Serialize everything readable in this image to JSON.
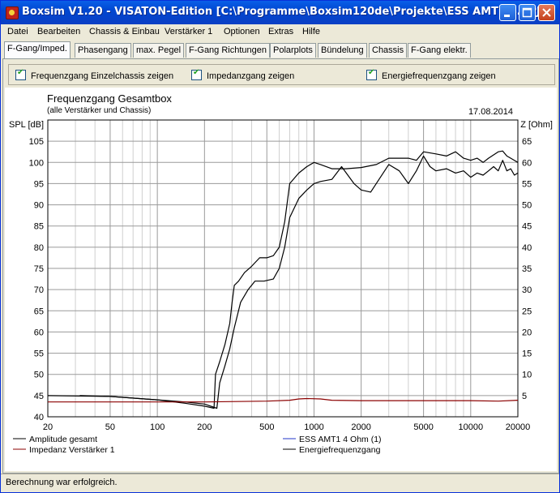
{
  "window": {
    "title": "Boxsim V1.20 - VISATON-Edition [C:\\Programme\\Boxsim120de\\Projekte\\ESS AMT1 4.BPJ]"
  },
  "menu": [
    "Datei",
    "Bearbeiten",
    "Chassis & Einbau",
    "Verstärker 1",
    "Optionen",
    "Extras",
    "Hilfe"
  ],
  "tabs": [
    "F-Gang/Imped.",
    "Phasengang",
    "max. Pegel",
    "F-Gang Richtungen",
    "Polarplots",
    "Bündelung",
    "Chassis",
    "F-Gang elektr."
  ],
  "active_tab": "F-Gang/Imped.",
  "checkboxes": [
    {
      "label": "Frequenzgang Einzelchassis zeigen",
      "checked": true
    },
    {
      "label": "Impedanzgang zeigen",
      "checked": true
    },
    {
      "label": "Energiefrequenzgang zeigen",
      "checked": true
    }
  ],
  "status": "Berechnung war erfolgreich.",
  "chart_data": {
    "type": "line",
    "title": "Frequenzgang Gesamtbox",
    "subtitle": "(alle Verstärker und Chassis)",
    "date": "17.08.2014",
    "ylabel": "SPL [dB]",
    "y2label": "Z [Ohm]",
    "xscale": "log",
    "xlim": [
      20,
      20000
    ],
    "ylim": [
      40,
      110
    ],
    "y2lim": [
      0,
      70
    ],
    "xticks": [
      "20",
      "50",
      "100",
      "200",
      "500",
      "1000",
      "2000",
      "5000",
      "10000",
      "20000"
    ],
    "yticks": [
      "40",
      "45",
      "50",
      "55",
      "60",
      "65",
      "70",
      "75",
      "80",
      "85",
      "90",
      "95",
      "100",
      "105"
    ],
    "y2ticks": [
      "5",
      "10",
      "15",
      "20",
      "25",
      "30",
      "35",
      "40",
      "45",
      "50",
      "55",
      "60",
      "65"
    ],
    "grid": true,
    "legend": [
      "Amplitude gesamt",
      "ESS AMT1 4 Ohm (1)",
      "Impedanz Verstärker 1",
      "Energiefrequenzgang"
    ],
    "series": [
      {
        "name": "Amplitude gesamt",
        "color": "#000000",
        "axis": "left",
        "points": [
          [
            20,
            45
          ],
          [
            50,
            44.8
          ],
          [
            100,
            44
          ],
          [
            150,
            43.2
          ],
          [
            200,
            42.5
          ],
          [
            230,
            42
          ],
          [
            235,
            50
          ],
          [
            250,
            53
          ],
          [
            270,
            57
          ],
          [
            290,
            62
          ],
          [
            300,
            67
          ],
          [
            310,
            71
          ],
          [
            330,
            72
          ],
          [
            360,
            74
          ],
          [
            400,
            75.5
          ],
          [
            450,
            77.5
          ],
          [
            500,
            77.5
          ],
          [
            550,
            78
          ],
          [
            600,
            80
          ],
          [
            650,
            86
          ],
          [
            700,
            95
          ],
          [
            800,
            97.5
          ],
          [
            900,
            99
          ],
          [
            1000,
            100
          ],
          [
            1100,
            99.5
          ],
          [
            1300,
            98.5
          ],
          [
            1600,
            98.5
          ],
          [
            2000,
            98.8
          ],
          [
            2500,
            99.5
          ],
          [
            3000,
            101
          ],
          [
            4000,
            101
          ],
          [
            4500,
            100.5
          ],
          [
            5000,
            102.5
          ],
          [
            6000,
            102
          ],
          [
            7000,
            101.5
          ],
          [
            8000,
            102.5
          ],
          [
            9000,
            101
          ],
          [
            10000,
            100.5
          ],
          [
            11000,
            101
          ],
          [
            12000,
            100
          ],
          [
            13000,
            101
          ],
          [
            15000,
            102.5
          ],
          [
            16000,
            102.7
          ],
          [
            17000,
            101.5
          ],
          [
            18000,
            101
          ],
          [
            20000,
            100
          ]
        ]
      },
      {
        "name": "Energiefrequenzgang",
        "color": "#000000",
        "axis": "left",
        "points": [
          [
            32,
            45
          ],
          [
            50,
            44.8
          ],
          [
            100,
            44
          ],
          [
            150,
            43.5
          ],
          [
            200,
            43
          ],
          [
            240,
            42
          ],
          [
            250,
            48
          ],
          [
            270,
            52
          ],
          [
            290,
            56
          ],
          [
            310,
            61
          ],
          [
            340,
            67
          ],
          [
            380,
            70
          ],
          [
            420,
            72
          ],
          [
            480,
            72
          ],
          [
            550,
            72.5
          ],
          [
            600,
            75
          ],
          [
            650,
            80
          ],
          [
            700,
            87
          ],
          [
            800,
            91.5
          ],
          [
            900,
            93.5
          ],
          [
            1000,
            95
          ],
          [
            1100,
            95.5
          ],
          [
            1300,
            96
          ],
          [
            1500,
            99
          ],
          [
            1800,
            95
          ],
          [
            2000,
            93.5
          ],
          [
            2300,
            93
          ],
          [
            2600,
            96
          ],
          [
            3000,
            99.5
          ],
          [
            3500,
            98
          ],
          [
            4000,
            95
          ],
          [
            4500,
            98
          ],
          [
            5000,
            101.5
          ],
          [
            5500,
            99
          ],
          [
            6000,
            98
          ],
          [
            7000,
            98.5
          ],
          [
            8000,
            97.5
          ],
          [
            9000,
            98
          ],
          [
            10000,
            96.5
          ],
          [
            11000,
            97.5
          ],
          [
            12000,
            97
          ],
          [
            13000,
            98
          ],
          [
            14000,
            99
          ],
          [
            15000,
            98
          ],
          [
            16000,
            100.5
          ],
          [
            17000,
            98
          ],
          [
            18000,
            98.5
          ],
          [
            19000,
            97
          ],
          [
            20000,
            97.5
          ]
        ]
      },
      {
        "name": "Impedanz Verstärker 1",
        "color": "#8b0000",
        "axis": "right",
        "points": [
          [
            20,
            3.5
          ],
          [
            100,
            3.5
          ],
          [
            200,
            3.5
          ],
          [
            500,
            3.7
          ],
          [
            700,
            3.9
          ],
          [
            800,
            4.2
          ],
          [
            900,
            4.3
          ],
          [
            1100,
            4.2
          ],
          [
            1300,
            3.9
          ],
          [
            2000,
            3.8
          ],
          [
            5000,
            3.8
          ],
          [
            10000,
            3.8
          ],
          [
            15000,
            3.7
          ],
          [
            20000,
            3.9
          ]
        ]
      }
    ]
  }
}
